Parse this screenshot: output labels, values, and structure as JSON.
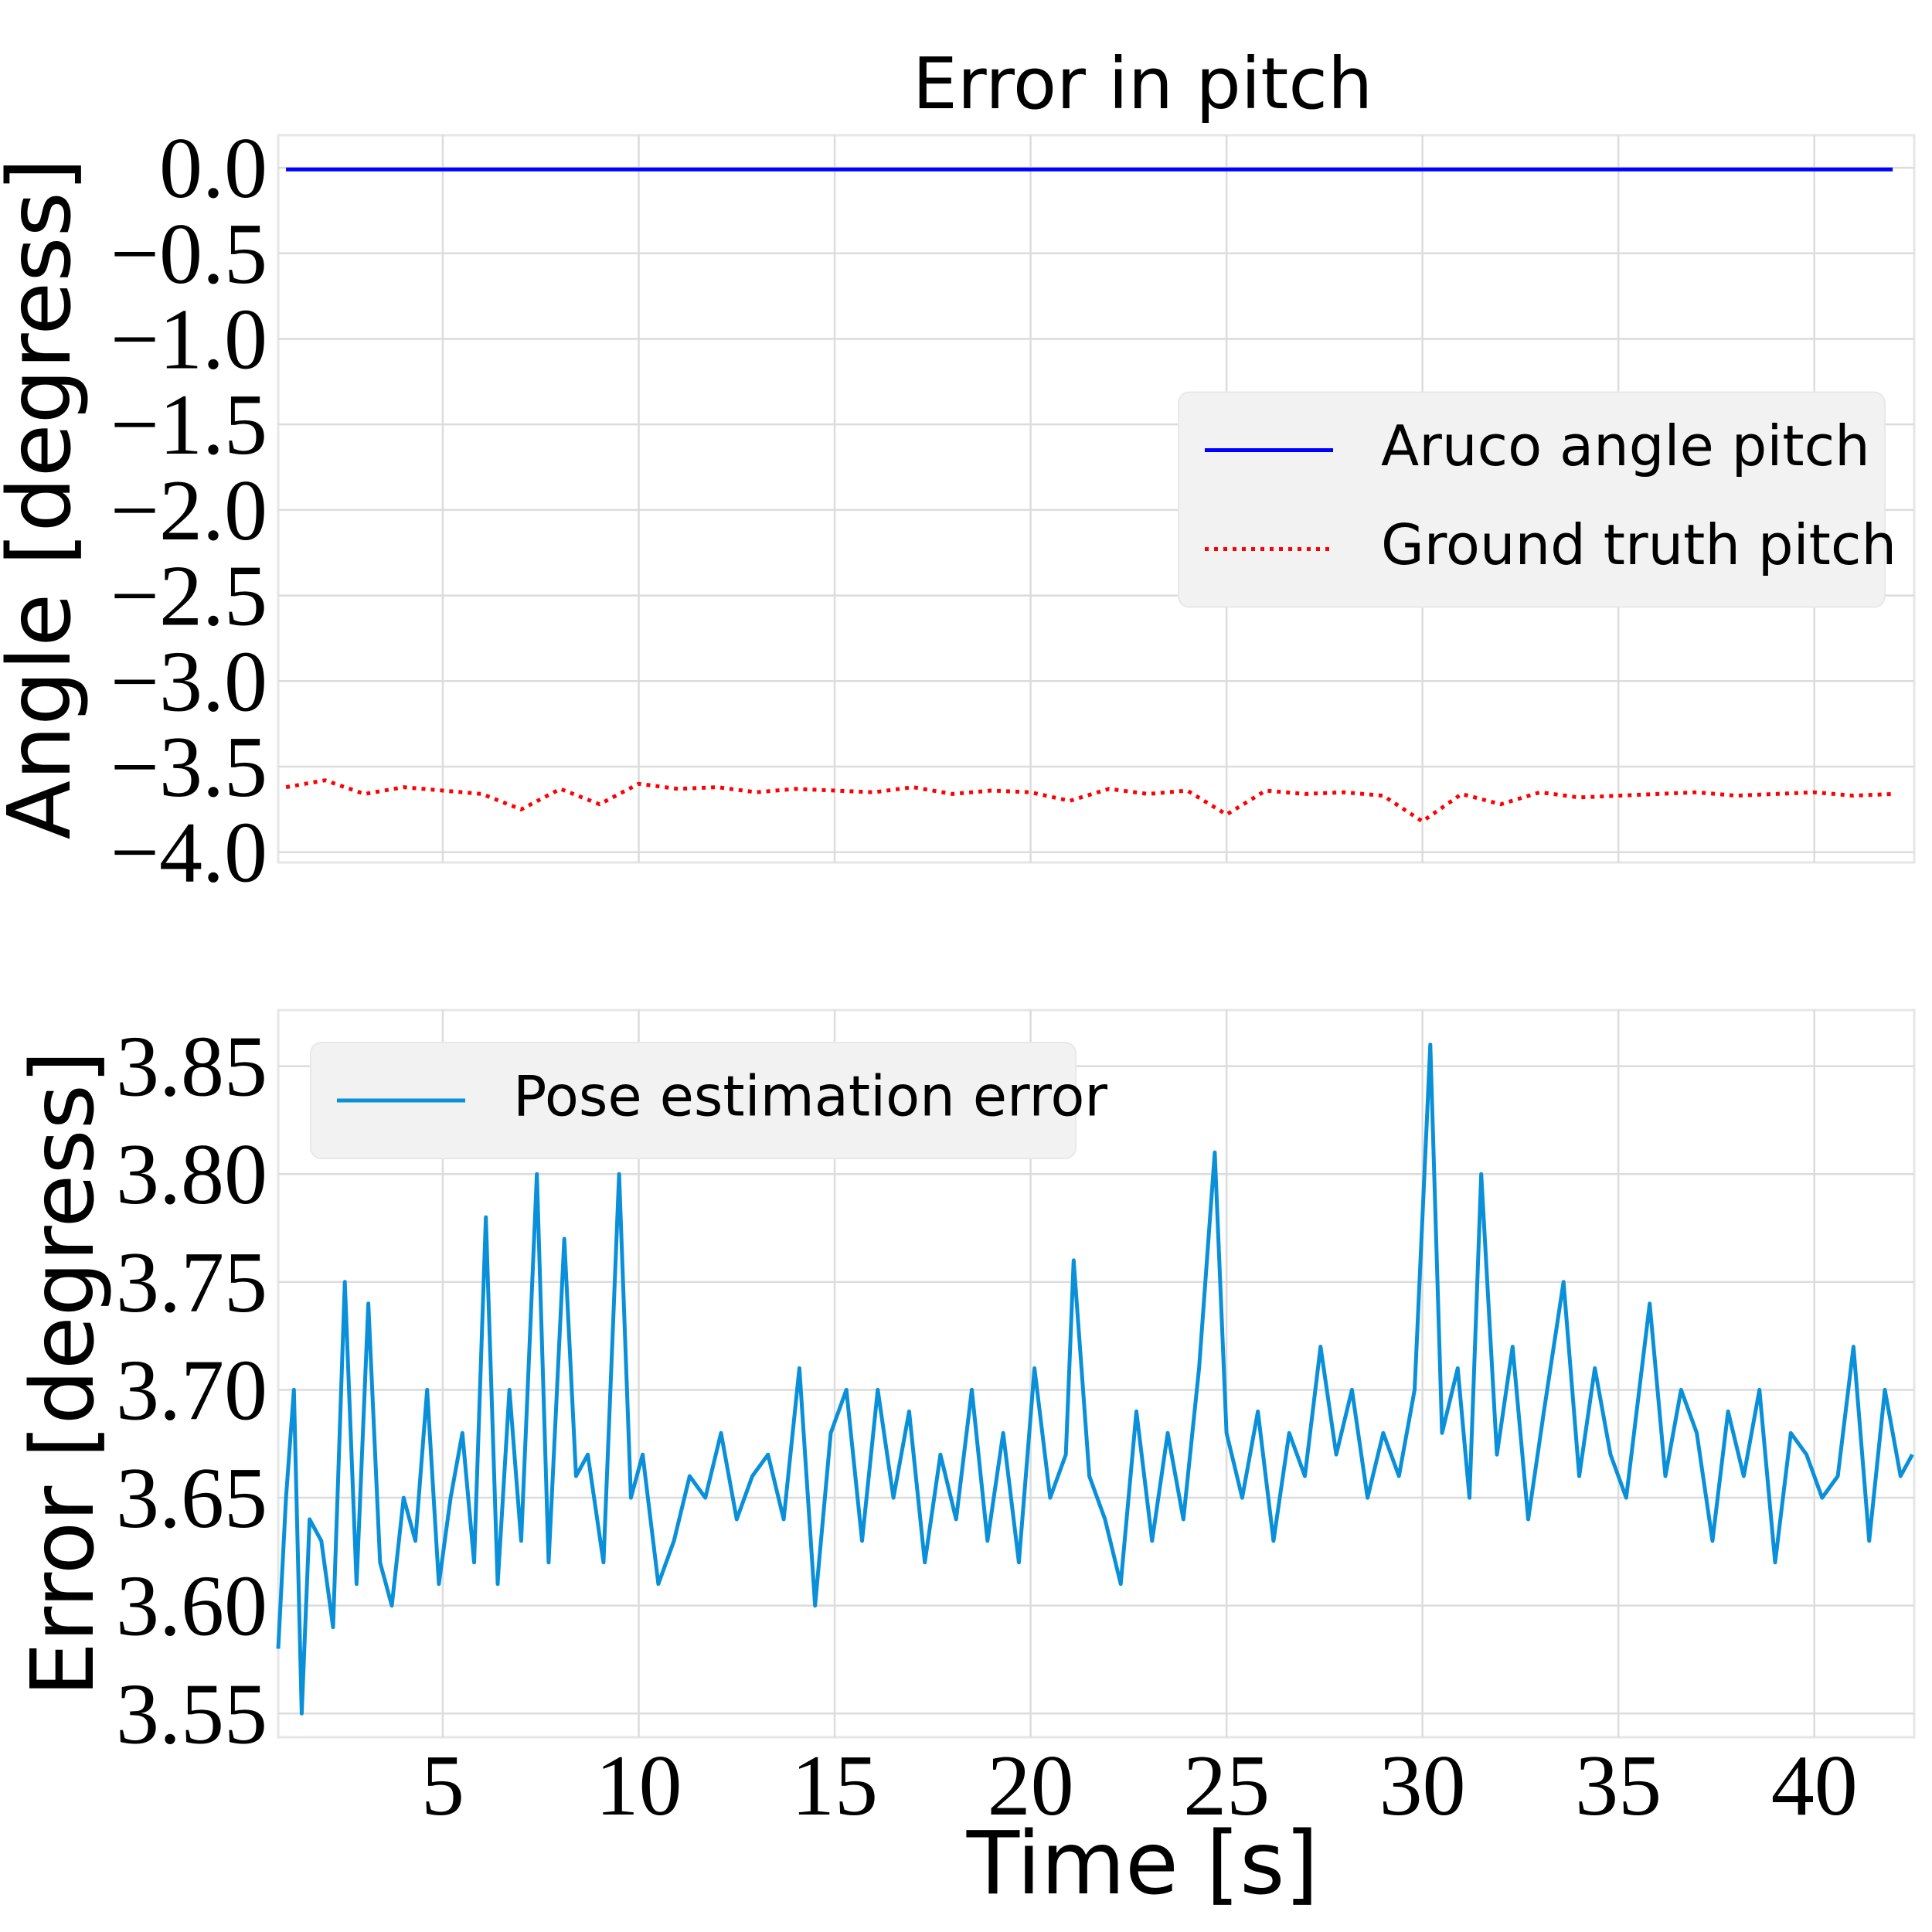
{
  "chart_data": [
    {
      "type": "line",
      "title": "Error in pitch",
      "ylabel": "Angle [degress]",
      "x": [
        1,
        2,
        3,
        4,
        5,
        6,
        7,
        8,
        9,
        10,
        11,
        12,
        13,
        14,
        15,
        16,
        17,
        18,
        19,
        20,
        21,
        22,
        23,
        24,
        25,
        26,
        27,
        28,
        29,
        30,
        31,
        32,
        33,
        34,
        35,
        36,
        37,
        38,
        39,
        40,
        41,
        42
      ],
      "series": [
        {
          "name": "Aruco angle pitch",
          "color": "#0000ff",
          "style": "solid",
          "values": [
            -0.01,
            -0.01,
            -0.01,
            -0.01,
            -0.01,
            -0.01,
            -0.01,
            -0.01,
            -0.01,
            -0.01,
            -0.01,
            -0.01,
            -0.01,
            -0.01,
            -0.01,
            -0.01,
            -0.01,
            -0.01,
            -0.01,
            -0.01,
            -0.01,
            -0.01,
            -0.01,
            -0.01,
            -0.01,
            -0.01,
            -0.01,
            -0.01,
            -0.01,
            -0.01,
            -0.01,
            -0.01,
            -0.01,
            -0.01,
            -0.01,
            -0.01,
            -0.01,
            -0.01,
            -0.01,
            -0.01,
            -0.01,
            -0.01
          ]
        },
        {
          "name": "Ground truth pitch",
          "color": "#ff0000",
          "style": "dotted",
          "values": [
            -3.62,
            -3.58,
            -3.66,
            -3.62,
            -3.64,
            -3.66,
            -3.75,
            -3.63,
            -3.72,
            -3.6,
            -3.63,
            -3.62,
            -3.65,
            -3.63,
            -3.64,
            -3.65,
            -3.62,
            -3.66,
            -3.64,
            -3.65,
            -3.7,
            -3.63,
            -3.66,
            -3.64,
            -3.78,
            -3.64,
            -3.66,
            -3.65,
            -3.67,
            -3.82,
            -3.66,
            -3.72,
            -3.65,
            -3.68,
            -3.67,
            -3.66,
            -3.65,
            -3.67,
            -3.66,
            -3.65,
            -3.67,
            -3.66
          ]
        }
      ],
      "xlim": [
        0.8,
        42.55
      ],
      "xticks": [
        5,
        10,
        15,
        20,
        25,
        30,
        35,
        40
      ],
      "ylim": [
        -4.06,
        0.19
      ],
      "yticks": [
        {
          "value": 0,
          "label": "0.0"
        },
        {
          "value": -0.5,
          "label": "−0.5"
        },
        {
          "value": -1,
          "label": "−1.0"
        },
        {
          "value": -1.5,
          "label": "−1.5"
        },
        {
          "value": -2,
          "label": "−2.0"
        },
        {
          "value": -2.5,
          "label": "−2.5"
        },
        {
          "value": -3,
          "label": "−3.0"
        },
        {
          "value": -3.5,
          "label": "−3.5"
        },
        {
          "value": -4,
          "label": "−4.0"
        }
      ],
      "grid": true,
      "legend": "center right"
    },
    {
      "type": "line",
      "ylabel": "Error [degress]",
      "xlabel": "Time [s]",
      "x": [
        0.8,
        1.0,
        1.2,
        1.4,
        1.6,
        1.9,
        2.2,
        2.5,
        2.8,
        3.1,
        3.4,
        3.7,
        4.0,
        4.3,
        4.6,
        4.9,
        5.2,
        5.5,
        5.8,
        6.1,
        6.4,
        6.7,
        7.0,
        7.4,
        7.7,
        8.1,
        8.4,
        8.7,
        9.1,
        9.5,
        9.8,
        10.1,
        10.5,
        10.9,
        11.3,
        11.7,
        12.1,
        12.5,
        12.9,
        13.3,
        13.7,
        14.1,
        14.5,
        14.9,
        15.3,
        15.7,
        16.1,
        16.5,
        16.9,
        17.3,
        17.7,
        18.1,
        18.5,
        18.9,
        19.3,
        19.7,
        20.1,
        20.5,
        20.9,
        21.1,
        21.5,
        21.9,
        22.3,
        22.7,
        23.1,
        23.5,
        23.9,
        24.3,
        24.7,
        25.0,
        25.4,
        25.8,
        26.2,
        26.6,
        27.0,
        27.4,
        27.8,
        28.2,
        28.6,
        29.0,
        29.4,
        29.8,
        30.2,
        30.5,
        30.9,
        31.2,
        31.5,
        31.9,
        32.3,
        32.7,
        33.1,
        33.6,
        34.0,
        34.4,
        34.8,
        35.2,
        35.8,
        36.2,
        36.6,
        37.0,
        37.4,
        37.8,
        38.2,
        38.6,
        39.0,
        39.4,
        39.8,
        40.2,
        40.6,
        41.0,
        41.4,
        41.8,
        42.2,
        42.5
      ],
      "series": [
        {
          "name": "Pose estimation error",
          "color": "#0a90d8",
          "style": "solid",
          "values": [
            3.58,
            3.65,
            3.7,
            3.55,
            3.64,
            3.63,
            3.59,
            3.75,
            3.61,
            3.74,
            3.62,
            3.6,
            3.65,
            3.63,
            3.7,
            3.61,
            3.65,
            3.68,
            3.62,
            3.78,
            3.61,
            3.7,
            3.63,
            3.8,
            3.62,
            3.77,
            3.66,
            3.67,
            3.62,
            3.8,
            3.65,
            3.67,
            3.61,
            3.63,
            3.66,
            3.65,
            3.68,
            3.64,
            3.66,
            3.67,
            3.64,
            3.71,
            3.6,
            3.68,
            3.7,
            3.63,
            3.7,
            3.65,
            3.69,
            3.62,
            3.67,
            3.64,
            3.7,
            3.63,
            3.68,
            3.62,
            3.71,
            3.65,
            3.67,
            3.76,
            3.66,
            3.64,
            3.61,
            3.69,
            3.63,
            3.68,
            3.64,
            3.71,
            3.81,
            3.68,
            3.65,
            3.69,
            3.63,
            3.68,
            3.66,
            3.72,
            3.67,
            3.7,
            3.65,
            3.68,
            3.66,
            3.7,
            3.86,
            3.68,
            3.71,
            3.65,
            3.8,
            3.67,
            3.72,
            3.64,
            3.69,
            3.75,
            3.66,
            3.71,
            3.67,
            3.65,
            3.74,
            3.66,
            3.7,
            3.68,
            3.63,
            3.69,
            3.66,
            3.7,
            3.62,
            3.68,
            3.67,
            3.65,
            3.66,
            3.72,
            3.63,
            3.7,
            3.66,
            3.67
          ]
        }
      ],
      "xlim": [
        0.8,
        42.55
      ],
      "xticks": [
        5,
        10,
        15,
        20,
        25,
        30,
        35,
        40
      ],
      "ylim": [
        3.539,
        3.876
      ],
      "yticks": [
        3.55,
        {
          "value": 3.6,
          "label": "3.60"
        },
        3.65,
        {
          "value": 3.7,
          "label": "3.70"
        },
        3.75,
        {
          "value": 3.8,
          "label": "3.80"
        },
        3.85
      ],
      "grid": true,
      "legend": "upper left"
    }
  ]
}
